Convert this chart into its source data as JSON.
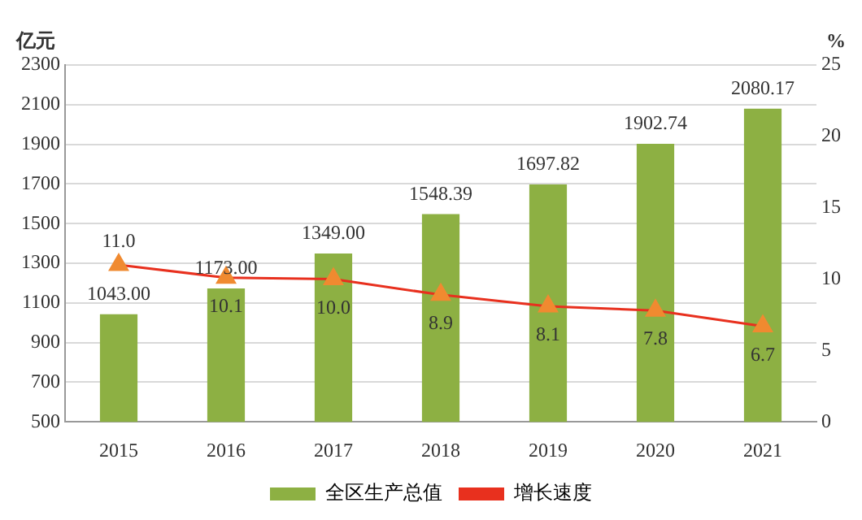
{
  "chart_data": {
    "type": "bar",
    "categories": [
      "2015",
      "2016",
      "2017",
      "2018",
      "2019",
      "2020",
      "2021"
    ],
    "ylabel": "亿元",
    "y2label": "%",
    "series": [
      {
        "name": "全区生产总值",
        "color": "#8db043",
        "values": [
          1043.0,
          1173.0,
          1349.0,
          1548.39,
          1697.82,
          1902.74,
          2080.17
        ],
        "value_labels": [
          "1043.00",
          "1173.00",
          "1349.00",
          "1548.39",
          "1697.82",
          "1902.74",
          "2080.17"
        ]
      },
      {
        "name": "增长速度",
        "type": "line",
        "axis": "y2",
        "color": "#e8301e",
        "marker": "triangle",
        "values": [
          11.0,
          10.1,
          10.0,
          8.9,
          8.1,
          7.8,
          6.7
        ],
        "value_labels": [
          "11.0",
          "10.1",
          "10.0",
          "8.9",
          "8.1",
          "7.8",
          "6.7"
        ]
      }
    ],
    "ylim": [
      500,
      2300
    ],
    "yticks": [
      500,
      700,
      900,
      1100,
      1300,
      1500,
      1700,
      1900,
      2100,
      2300
    ],
    "y2lim": [
      0,
      25
    ],
    "y2ticks": [
      0,
      5,
      10,
      15,
      20,
      25
    ],
    "grid": "y",
    "legend": "bottom"
  }
}
